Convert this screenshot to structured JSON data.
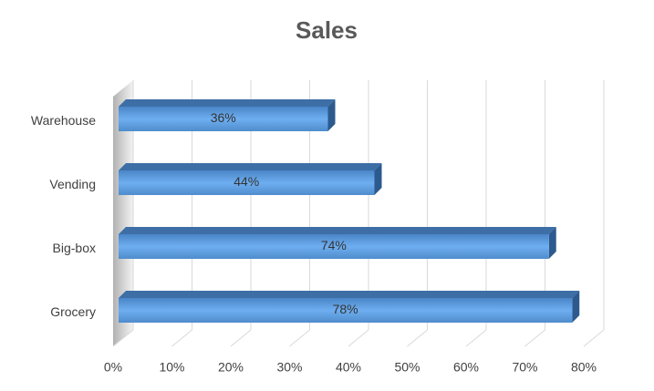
{
  "chart_data": {
    "type": "bar3d-horizontal",
    "title": "Sales",
    "categories": [
      "Grocery",
      "Big-box",
      "Vending",
      "Warehouse"
    ],
    "values": [
      78,
      74,
      44,
      36
    ],
    "value_labels": [
      "78%",
      "74%",
      "44%",
      "36%"
    ],
    "color": "#5b9bd5",
    "xlim": [
      0,
      80
    ],
    "xticks": [
      {
        "value": 0,
        "label": "0%"
      },
      {
        "value": 10,
        "label": "10%"
      },
      {
        "value": 20,
        "label": "20%"
      },
      {
        "value": 30,
        "label": "30%"
      },
      {
        "value": 40,
        "label": "40%"
      },
      {
        "value": 50,
        "label": "50%"
      },
      {
        "value": 60,
        "label": "60%"
      },
      {
        "value": 70,
        "label": "70%"
      },
      {
        "value": 80,
        "label": "80%"
      }
    ],
    "grid": true
  }
}
